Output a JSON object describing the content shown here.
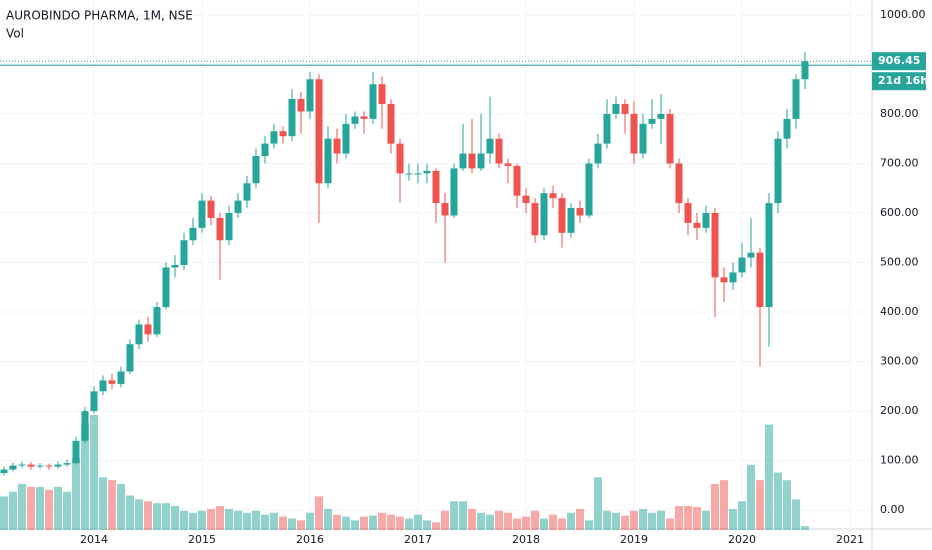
{
  "chart_data": {
    "type": "candlestick",
    "title": "AUROBINDO PHARMA, 1M, NSE",
    "subtitle": "Vol",
    "up_color": "#26a69a",
    "down_color": "#ef5350",
    "x": [
      "2013-03",
      "2013-04",
      "2013-05",
      "2013-06",
      "2013-07",
      "2013-08",
      "2013-09",
      "2013-10",
      "2013-11",
      "2013-12",
      "2014-01",
      "2014-02",
      "2014-03",
      "2014-04",
      "2014-05",
      "2014-06",
      "2014-07",
      "2014-08",
      "2014-09",
      "2014-10",
      "2014-11",
      "2014-12",
      "2015-01",
      "2015-02",
      "2015-03",
      "2015-04",
      "2015-05",
      "2015-06",
      "2015-07",
      "2015-08",
      "2015-09",
      "2015-10",
      "2015-11",
      "2015-12",
      "2016-01",
      "2016-02",
      "2016-03",
      "2016-04",
      "2016-05",
      "2016-06",
      "2016-07",
      "2016-08",
      "2016-09",
      "2016-10",
      "2016-11",
      "2016-12",
      "2017-01",
      "2017-02",
      "2017-03",
      "2017-04",
      "2017-05",
      "2017-06",
      "2017-07",
      "2017-08",
      "2017-09",
      "2017-10",
      "2017-11",
      "2017-12",
      "2018-01",
      "2018-02",
      "2018-03",
      "2018-04",
      "2018-05",
      "2018-06",
      "2018-07",
      "2018-08",
      "2018-09",
      "2018-10",
      "2018-11",
      "2018-12",
      "2019-01",
      "2019-02",
      "2019-03",
      "2019-04",
      "2019-05",
      "2019-06",
      "2019-07",
      "2019-08",
      "2019-09",
      "2019-10",
      "2019-11",
      "2019-12",
      "2020-01",
      "2020-02",
      "2020-03",
      "2020-04",
      "2020-05",
      "2020-06",
      "2020-07",
      "2020-08"
    ],
    "open": [
      75,
      82,
      90,
      92,
      88,
      90,
      88,
      92,
      95,
      140,
      200,
      240,
      262,
      255,
      280,
      335,
      375,
      355,
      410,
      490,
      495,
      545,
      570,
      625,
      590,
      545,
      600,
      625,
      660,
      715,
      740,
      765,
      755,
      830,
      805,
      870,
      660,
      750,
      720,
      780,
      795,
      790,
      860,
      820,
      740,
      680,
      680,
      680,
      685,
      620,
      595,
      690,
      720,
      690,
      720,
      750,
      700,
      695,
      635,
      620,
      555,
      640,
      630,
      560,
      610,
      595,
      700,
      740,
      800,
      820,
      800,
      720,
      780,
      790,
      800,
      700,
      620,
      580,
      570,
      600,
      470,
      460,
      480,
      510,
      520,
      410,
      620,
      750,
      790,
      870
    ],
    "high": [
      88,
      96,
      98,
      97,
      95,
      94,
      98,
      102,
      148,
      208,
      250,
      272,
      275,
      290,
      345,
      385,
      390,
      420,
      500,
      515,
      560,
      590,
      640,
      635,
      600,
      615,
      640,
      675,
      730,
      755,
      780,
      775,
      850,
      845,
      885,
      880,
      775,
      770,
      800,
      805,
      805,
      885,
      875,
      830,
      750,
      700,
      700,
      700,
      690,
      640,
      700,
      780,
      790,
      800,
      835,
      760,
      710,
      700,
      650,
      630,
      650,
      655,
      640,
      620,
      625,
      710,
      760,
      830,
      835,
      830,
      825,
      800,
      830,
      840,
      810,
      710,
      630,
      600,
      615,
      610,
      490,
      500,
      540,
      590,
      530,
      640,
      765,
      810,
      880,
      925
    ],
    "low": [
      70,
      78,
      85,
      82,
      84,
      82,
      84,
      88,
      92,
      135,
      195,
      232,
      245,
      248,
      275,
      325,
      340,
      350,
      405,
      470,
      485,
      535,
      560,
      575,
      465,
      535,
      590,
      610,
      650,
      700,
      730,
      740,
      745,
      760,
      790,
      580,
      650,
      700,
      710,
      770,
      760,
      780,
      770,
      720,
      620,
      665,
      660,
      660,
      580,
      500,
      590,
      685,
      680,
      685,
      700,
      690,
      660,
      610,
      600,
      540,
      545,
      610,
      530,
      550,
      580,
      590,
      690,
      730,
      790,
      760,
      700,
      710,
      770,
      740,
      690,
      600,
      555,
      545,
      560,
      390,
      420,
      445,
      470,
      490,
      290,
      330,
      600,
      730,
      770,
      850
    ],
    "close": [
      82,
      90,
      92,
      88,
      90,
      88,
      92,
      95,
      140,
      200,
      240,
      262,
      255,
      280,
      335,
      375,
      355,
      410,
      490,
      495,
      545,
      570,
      625,
      590,
      545,
      600,
      625,
      660,
      715,
      740,
      765,
      755,
      830,
      805,
      870,
      660,
      750,
      720,
      780,
      795,
      790,
      860,
      820,
      740,
      680,
      680,
      680,
      685,
      620,
      595,
      690,
      720,
      690,
      720,
      750,
      700,
      695,
      635,
      620,
      555,
      640,
      630,
      560,
      610,
      595,
      700,
      740,
      800,
      820,
      800,
      720,
      780,
      790,
      800,
      700,
      620,
      580,
      570,
      600,
      470,
      460,
      480,
      510,
      520,
      410,
      620,
      750,
      790,
      870,
      906.45
    ],
    "volume": [
      35,
      40,
      48,
      45,
      45,
      42,
      45,
      40,
      75,
      112,
      120,
      55,
      52,
      48,
      36,
      32,
      30,
      28,
      28,
      25,
      20,
      18,
      20,
      22,
      25,
      22,
      20,
      18,
      20,
      16,
      18,
      14,
      12,
      10,
      18,
      35,
      22,
      16,
      14,
      10,
      14,
      15,
      18,
      16,
      14,
      12,
      16,
      10,
      8,
      20,
      30,
      30,
      22,
      18,
      16,
      20,
      18,
      12,
      14,
      20,
      12,
      16,
      12,
      18,
      22,
      10,
      55,
      20,
      18,
      15,
      20,
      22,
      18,
      20,
      12,
      25,
      25,
      24,
      20,
      48,
      52,
      22,
      30,
      68,
      52,
      110,
      60,
      52,
      32,
      4
    ],
    "last_price_label": "906.45",
    "countdown": "21d 16h",
    "ylim": [
      -40,
      1030
    ],
    "yticks": [
      {
        "value": 0,
        "label": "0.00"
      },
      {
        "value": 100,
        "label": "100.00"
      },
      {
        "value": 200,
        "label": "200.00"
      },
      {
        "value": 300,
        "label": "300.00"
      },
      {
        "value": 400,
        "label": "400.00"
      },
      {
        "value": 500,
        "label": "500.00"
      },
      {
        "value": 600,
        "label": "600.00"
      },
      {
        "value": 700,
        "label": "700.00"
      },
      {
        "value": 800,
        "label": "800.00"
      },
      {
        "value": 900,
        "label": "900.00"
      },
      {
        "value": 1000,
        "label": "1000.00"
      }
    ],
    "xticks": [
      {
        "value": "2014-01",
        "label": "2014"
      },
      {
        "value": "2015-01",
        "label": "2015"
      },
      {
        "value": "2016-01",
        "label": "2016"
      },
      {
        "value": "2017-01",
        "label": "2017"
      },
      {
        "value": "2018-01",
        "label": "2018"
      },
      {
        "value": "2019-01",
        "label": "2019"
      },
      {
        "value": "2020-01",
        "label": "2020"
      },
      {
        "value": "2021-01",
        "label": "2021"
      }
    ],
    "grid": true
  }
}
